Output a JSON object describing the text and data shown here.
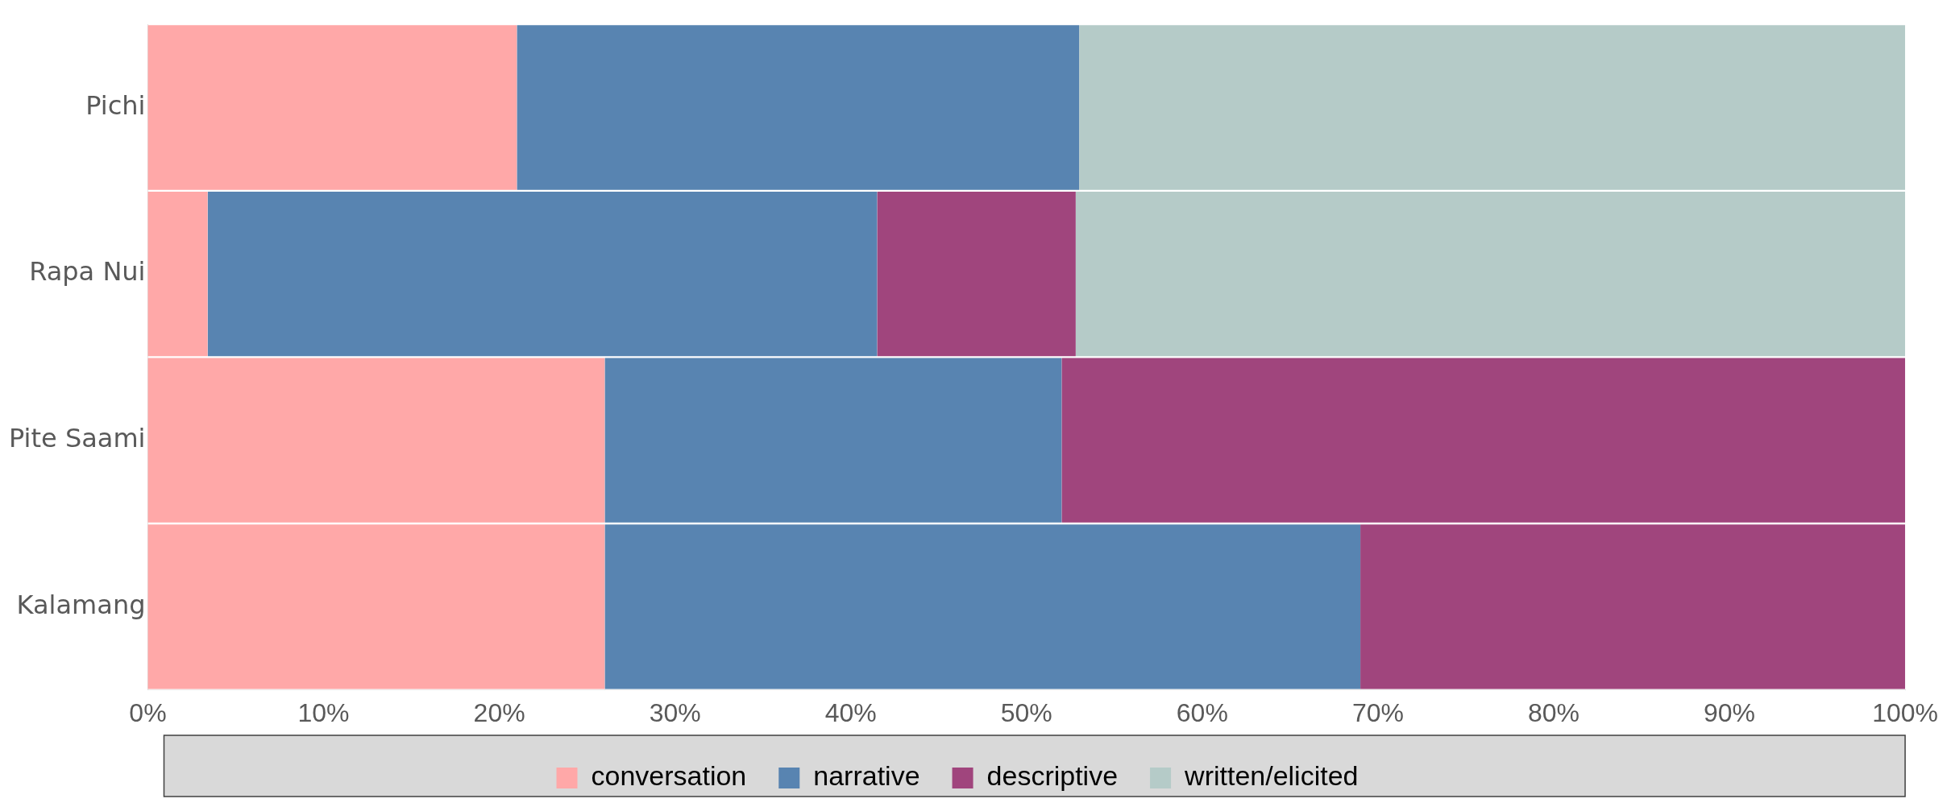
{
  "chart_data": {
    "type": "bar",
    "orientation": "horizontal",
    "stacked": true,
    "categories": [
      "Pichi",
      "Rapa Nui",
      "Pite Saami",
      "Kalamang"
    ],
    "series": [
      {
        "name": "conversation",
        "color": "#ffa8a8",
        "values": [
          21.0,
          3.4,
          26.0,
          26.0
        ]
      },
      {
        "name": "narrative",
        "color": "#5884b1",
        "values": [
          32.0,
          38.1,
          26.0,
          43.0
        ]
      },
      {
        "name": "descriptive",
        "color": "#a0457d",
        "values": [
          0,
          11.3,
          48.0,
          31.0
        ]
      },
      {
        "name": "written/elicited",
        "color": "#b5cbc8",
        "values": [
          47.0,
          47.2,
          0,
          0
        ]
      }
    ],
    "xlim": [
      0,
      100
    ],
    "xticks": [
      {
        "value": 0,
        "label": "0%"
      },
      {
        "value": 10,
        "label": "10%"
      },
      {
        "value": 20,
        "label": "20%"
      },
      {
        "value": 30,
        "label": "30%"
      },
      {
        "value": 40,
        "label": "40%"
      },
      {
        "value": 50,
        "label": "50%"
      },
      {
        "value": 60,
        "label": "60%"
      },
      {
        "value": 70,
        "label": "70%"
      },
      {
        "value": 80,
        "label": "80%"
      },
      {
        "value": 90,
        "label": "90%"
      },
      {
        "value": 100,
        "label": "100%"
      }
    ],
    "grid": false,
    "legend": "bottom"
  }
}
